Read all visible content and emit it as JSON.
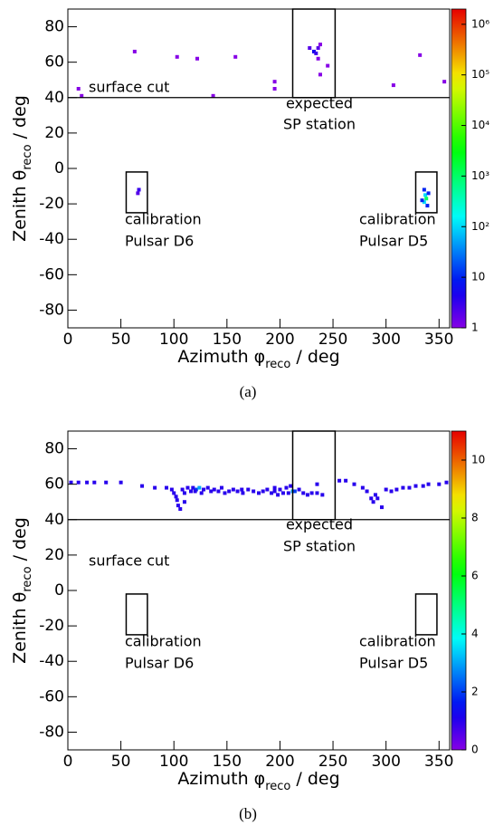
{
  "chart_data": [
    {
      "type": "heatmap",
      "caption": "(a)",
      "xlabel": {
        "main": "Azimuth φ",
        "sub": "reco",
        "tail": " / deg"
      },
      "ylabel": {
        "main": "Zenith θ",
        "sub": "reco",
        "tail": " / deg"
      },
      "xlim": [
        0,
        360
      ],
      "xticks": [
        0,
        50,
        100,
        150,
        200,
        250,
        300,
        350
      ],
      "ylim": [
        -90,
        90
      ],
      "yticks": [
        -80,
        -60,
        -40,
        -20,
        0,
        20,
        40,
        60,
        80
      ],
      "zlim": [
        1,
        2000000
      ],
      "zlog": true,
      "colormap": "rainbow",
      "zticks": [
        1,
        10,
        {
          "value": 100,
          "label": "10²"
        },
        {
          "value": 1000,
          "label": "10³"
        },
        {
          "value": 10000,
          "label": "10⁴"
        },
        {
          "value": 100000,
          "label": "10⁵"
        },
        {
          "value": 1000000,
          "label": "10⁶"
        }
      ],
      "hline": 40,
      "regions": [
        {
          "x": [
            212,
            252
          ],
          "y": [
            40,
            90
          ]
        },
        {
          "x": [
            55,
            75
          ],
          "y": [
            -25,
            -2
          ]
        },
        {
          "x": [
            328,
            348
          ],
          "y": [
            -25,
            -2
          ]
        }
      ],
      "annotations": [
        [
          "surface cut"
        ],
        [
          "expected",
          "SP station"
        ],
        [
          "calibration",
          "Pulsar D6"
        ],
        [
          "calibration",
          "Pulsar D5"
        ]
      ],
      "x": [
        10,
        13,
        63,
        103,
        122,
        137,
        158,
        195,
        195,
        228,
        232,
        234,
        236,
        238,
        236,
        245,
        238,
        307,
        332,
        355,
        67,
        66,
        336,
        337,
        338,
        336,
        339,
        334,
        340
      ],
      "y": [
        45,
        41,
        66,
        63,
        62,
        41,
        63,
        49,
        45,
        68,
        66,
        65,
        68,
        70,
        62,
        58,
        53,
        47,
        64,
        49,
        -12,
        -14,
        -12,
        -15,
        -17,
        -19,
        -21,
        -18,
        -14
      ],
      "values": [
        1,
        1,
        1,
        1,
        1,
        1,
        1,
        1,
        1,
        2,
        5,
        3,
        2,
        1,
        1,
        1,
        1,
        1,
        1,
        1,
        3,
        2,
        10,
        100,
        1000,
        100,
        10,
        10,
        10
      ]
    },
    {
      "type": "heatmap",
      "caption": "(b)",
      "xlabel": {
        "main": "Azimuth φ",
        "sub": "reco",
        "tail": " / deg"
      },
      "ylabel": {
        "main": "Zenith θ",
        "sub": "reco",
        "tail": " / deg"
      },
      "xlim": [
        0,
        360
      ],
      "xticks": [
        0,
        50,
        100,
        150,
        200,
        250,
        300,
        350
      ],
      "ylim": [
        -90,
        90
      ],
      "yticks": [
        -80,
        -60,
        -40,
        -20,
        0,
        20,
        40,
        60,
        80
      ],
      "zlim": [
        0,
        11
      ],
      "zlog": false,
      "colormap": "rainbow",
      "zticks": [
        0,
        2,
        4,
        6,
        8,
        10
      ],
      "hline": 40,
      "regions": [
        {
          "x": [
            212,
            252
          ],
          "y": [
            40,
            90
          ]
        },
        {
          "x": [
            55,
            75
          ],
          "y": [
            -25,
            -2
          ]
        },
        {
          "x": [
            328,
            348
          ],
          "y": [
            -25,
            -2
          ]
        }
      ],
      "annotations": [
        [
          "surface cut"
        ],
        [
          "expected",
          "SP station"
        ],
        [
          "calibration",
          "Pulsar D6"
        ],
        [
          "calibration",
          "Pulsar D5"
        ]
      ],
      "x": [
        3,
        10,
        18,
        25,
        36,
        50,
        70,
        82,
        93,
        98,
        100,
        102,
        103,
        104,
        106,
        108,
        110,
        113,
        116,
        118,
        121,
        124,
        126,
        128,
        132,
        135,
        138,
        142,
        145,
        148,
        152,
        156,
        160,
        165,
        170,
        175,
        180,
        184,
        188,
        192,
        195,
        198,
        200,
        203,
        206,
        210,
        212,
        214,
        218,
        222,
        226,
        230,
        235,
        240,
        256,
        262,
        270,
        278,
        282,
        286,
        288,
        290,
        292,
        296,
        300,
        305,
        310,
        316,
        322,
        328,
        335,
        340,
        350,
        357,
        235,
        208,
        195,
        164,
        120,
        110
      ],
      "y": [
        61,
        61,
        61,
        61,
        61,
        61,
        59,
        58,
        58,
        57,
        55,
        53,
        51,
        48,
        46,
        57,
        55,
        58,
        56,
        58,
        57,
        58,
        55,
        57,
        58,
        56,
        57,
        56,
        58,
        55,
        56,
        57,
        56,
        55,
        57,
        56,
        55,
        56,
        57,
        55,
        56,
        54,
        57,
        55,
        58,
        59,
        56,
        56,
        57,
        55,
        54,
        55,
        60,
        54,
        62,
        62,
        60,
        58,
        56,
        52,
        50,
        54,
        52,
        47,
        57,
        56,
        57,
        58,
        58,
        59,
        59,
        60,
        60,
        61,
        55,
        55,
        58,
        57,
        56,
        50
      ],
      "values": [
        1,
        1,
        1,
        1,
        1,
        1,
        1,
        1,
        1,
        1,
        1,
        1,
        1,
        1,
        1,
        1,
        1,
        1,
        1,
        1,
        2,
        3,
        1,
        1,
        1,
        1,
        1,
        1,
        1,
        1,
        1,
        1,
        1,
        1,
        1,
        1,
        1,
        1,
        1,
        1,
        1,
        1,
        1,
        1,
        1,
        1,
        3,
        2,
        1,
        1,
        1,
        1,
        1,
        1,
        1,
        1,
        1,
        1,
        1,
        1,
        1,
        1,
        1,
        1,
        1,
        1,
        1,
        1,
        1,
        1,
        1,
        1,
        1,
        1,
        1,
        1,
        1,
        1,
        1,
        1
      ]
    }
  ]
}
